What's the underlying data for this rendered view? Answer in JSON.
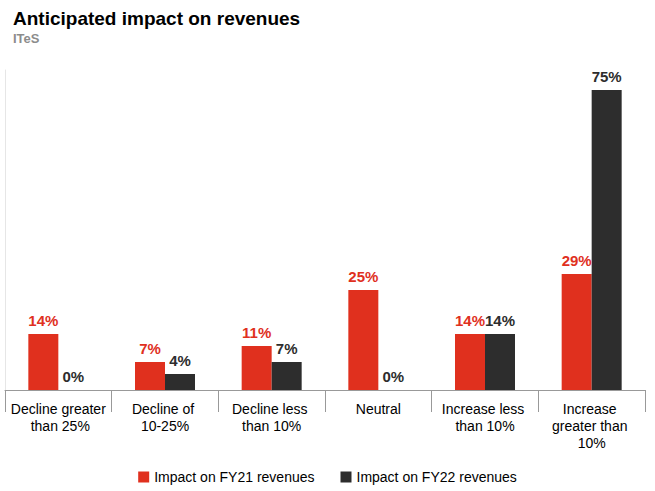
{
  "chart_data": {
    "type": "bar",
    "title": "Anticipated impact on revenues",
    "subtitle": "ITeS",
    "categories": [
      "Decline greater than 25%",
      "Decline of 10-25%",
      "Decline less than 10%",
      "Neutral",
      "Increase less than 10%",
      "Increase greater than 10%"
    ],
    "series": [
      {
        "name": "Impact on FY21 revenues",
        "color": "#e0301e",
        "values": [
          14,
          7,
          11,
          25,
          14,
          29
        ],
        "value_labels": [
          "14%",
          "7%",
          "11%",
          "25%",
          "14%",
          "29%"
        ]
      },
      {
        "name": "Impact on FY22 revenues",
        "color": "#2d2d2d",
        "values": [
          0,
          4,
          7,
          0,
          14,
          75
        ],
        "value_labels": [
          "0%",
          "4%",
          "7%",
          "0%",
          "14%",
          "75%"
        ]
      }
    ],
    "ylim": [
      0,
      80
    ],
    "grid": false,
    "legend": "bottom",
    "data_labels": true,
    "tick_labels": "x"
  }
}
